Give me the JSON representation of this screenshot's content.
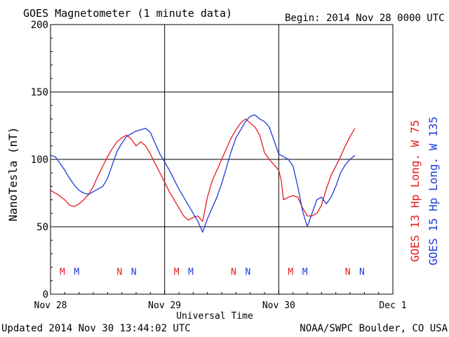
{
  "chart_data": {
    "type": "line",
    "title": "GOES Magnetometer (1 minute data)",
    "begin_label": "Begin:  2014 Nov 28 0000 UTC",
    "xlabel": "Universal Time",
    "ylabel": "NanoTesla (nT)",
    "xlim": [
      0,
      72
    ],
    "ylim": [
      0,
      200
    ],
    "y_ticks": [
      0,
      50,
      100,
      150,
      200
    ],
    "x_tick_labels": [
      {
        "hour": 0,
        "label": "Nov 28"
      },
      {
        "hour": 24,
        "label": "Nov 29"
      },
      {
        "hour": 48,
        "label": "Nov 30"
      },
      {
        "hour": 72,
        "label": "Dec 1"
      }
    ],
    "grid": true,
    "series": [
      {
        "name": "GOES 13 Hp  Long. W 75",
        "color": "#e8191f",
        "x": [
          0,
          1.5,
          3,
          4,
          5,
          6,
          7,
          8,
          9,
          10,
          11,
          12,
          13,
          14,
          15,
          16,
          17,
          18,
          19,
          20,
          21,
          22,
          23,
          24,
          25,
          26,
          27,
          28,
          29,
          30,
          31,
          32,
          33,
          34,
          35,
          36,
          37,
          38,
          39,
          40,
          41,
          42,
          43,
          44,
          45,
          46,
          47,
          48,
          48.5,
          49,
          50,
          51,
          52,
          53,
          54,
          55,
          56,
          57,
          58,
          59,
          60,
          61,
          62,
          63,
          64
        ],
        "values": [
          77,
          74,
          70,
          66,
          65,
          67,
          70,
          74,
          80,
          88,
          95,
          102,
          108,
          113,
          116,
          118,
          115,
          110,
          113,
          110,
          104,
          97,
          90,
          83,
          76,
          70,
          64,
          58,
          55,
          57,
          58,
          54,
          72,
          84,
          92,
          100,
          108,
          116,
          122,
          127,
          130,
          127,
          124,
          118,
          105,
          100,
          96,
          92,
          85,
          70,
          72,
          73,
          72,
          64,
          58,
          58,
          60,
          66,
          78,
          88,
          95,
          102,
          110,
          117,
          123
        ]
      },
      {
        "name": "GOES 15 Hp  Long. W 135",
        "color": "#1f3bd6",
        "x": [
          0,
          1,
          2,
          3,
          4,
          5,
          6,
          7,
          8,
          9,
          10,
          11,
          12,
          13,
          14,
          15,
          16,
          17,
          18,
          19,
          20,
          21,
          22,
          23,
          24,
          25,
          26,
          27,
          28,
          29,
          30,
          31,
          32,
          33,
          34,
          35,
          36,
          37,
          38,
          39,
          40,
          41,
          42,
          43,
          44,
          45,
          46,
          47,
          48,
          49,
          50,
          51,
          52,
          53,
          54,
          55,
          56,
          57,
          58,
          59,
          60,
          61,
          62,
          63,
          64
        ],
        "values": [
          103,
          102,
          97,
          92,
          86,
          81,
          77,
          75,
          74,
          76,
          78,
          80,
          86,
          96,
          106,
          112,
          117,
          119,
          121,
          122,
          123,
          120,
          112,
          104,
          98,
          92,
          85,
          78,
          72,
          66,
          60,
          54,
          46,
          56,
          64,
          72,
          82,
          94,
          106,
          116,
          122,
          128,
          132,
          133,
          130,
          128,
          124,
          114,
          104,
          102,
          100,
          95,
          80,
          62,
          50,
          60,
          70,
          72,
          67,
          72,
          80,
          90,
          96,
          100,
          103
        ]
      }
    ],
    "markers": {
      "y_value": 17,
      "items": [
        {
          "hour": 2.5,
          "label": "M",
          "series": 0
        },
        {
          "hour": 5.5,
          "label": "M",
          "series": 1
        },
        {
          "hour": 14.5,
          "label": "N",
          "series": 0
        },
        {
          "hour": 17.5,
          "label": "N",
          "series": 1
        },
        {
          "hour": 26.5,
          "label": "M",
          "series": 0
        },
        {
          "hour": 29.5,
          "label": "M",
          "series": 1
        },
        {
          "hour": 38.5,
          "label": "N",
          "series": 0
        },
        {
          "hour": 41.5,
          "label": "N",
          "series": 1
        },
        {
          "hour": 50.5,
          "label": "M",
          "series": 0
        },
        {
          "hour": 53.5,
          "label": "M",
          "series": 1
        },
        {
          "hour": 62.5,
          "label": "N",
          "series": 0
        },
        {
          "hour": 65.5,
          "label": "N",
          "series": 1
        }
      ]
    }
  },
  "footer": {
    "updated": "Updated 2014 Nov 30 13:44:02 UTC",
    "credit": "NOAA/SWPC Boulder, CO USA"
  }
}
